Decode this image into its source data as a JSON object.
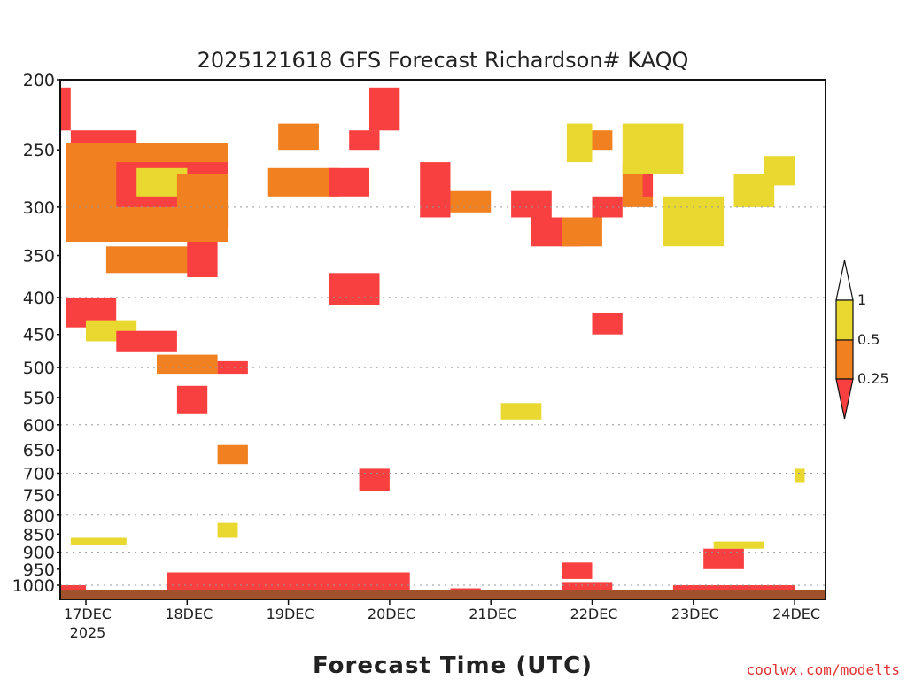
{
  "chart_data": {
    "type": "heatmap",
    "title": "2025121618 GFS Forecast Richardson# KAQQ",
    "xlabel": "Forecast Time (UTC)",
    "ylabel": "",
    "credit": "coolwx.com/modelts",
    "y_scale": "log-pressure (hPa), inverted",
    "ylim": [
      1050,
      200
    ],
    "y_ticks": [
      200,
      250,
      300,
      350,
      400,
      450,
      500,
      550,
      600,
      650,
      700,
      750,
      800,
      850,
      900,
      950,
      1000
    ],
    "y_gridlines": [
      300,
      400,
      500,
      600,
      700,
      800,
      900,
      1000
    ],
    "x_time_range_days": [
      "16DEC 18Z",
      "24DEC 06Z"
    ],
    "x_ticks": [
      {
        "label": "17DEC",
        "day": 17
      },
      {
        "label": "18DEC",
        "day": 18
      },
      {
        "label": "19DEC",
        "day": 19
      },
      {
        "label": "20DEC",
        "day": 20
      },
      {
        "label": "21DEC",
        "day": 21
      },
      {
        "label": "22DEC",
        "day": 22
      },
      {
        "label": "23DEC",
        "day": 23
      },
      {
        "label": "24DEC",
        "day": 24
      }
    ],
    "x_year_label": "2025",
    "legend": {
      "placement": "right",
      "bins": [
        {
          "range": "> 1",
          "color": "#ffffff"
        },
        {
          "range": "0.5 - 1",
          "color": "#e8d830"
        },
        {
          "range": "0.25 - 0.5",
          "color": "#f08020"
        },
        {
          "range": "< 0.25",
          "color": "#f84040"
        }
      ],
      "labels": [
        "1",
        "0.5",
        "0.25"
      ]
    },
    "ground_color": "#a0522d",
    "cells": [
      {
        "t": [
          16.75,
          16.85
        ],
        "p": [
          205,
          235
        ],
        "v": "red"
      },
      {
        "t": [
          16.85,
          17.5
        ],
        "p": [
          235,
          260
        ],
        "v": "red"
      },
      {
        "t": [
          17.0,
          17.7
        ],
        "p": [
          255,
          300
        ],
        "v": "red"
      },
      {
        "t": [
          16.8,
          18.4
        ],
        "p": [
          245,
          335
        ],
        "v": "orange"
      },
      {
        "t": [
          17.3,
          18.4
        ],
        "p": [
          260,
          300
        ],
        "v": "red"
      },
      {
        "t": [
          17.5,
          18.0
        ],
        "p": [
          265,
          290
        ],
        "v": "yellow"
      },
      {
        "t": [
          17.9,
          18.4
        ],
        "p": [
          270,
          320
        ],
        "v": "orange"
      },
      {
        "t": [
          17.2,
          18.2
        ],
        "p": [
          340,
          370
        ],
        "v": "orange"
      },
      {
        "t": [
          18.0,
          18.3
        ],
        "p": [
          335,
          375
        ],
        "v": "red"
      },
      {
        "t": [
          16.8,
          17.3
        ],
        "p": [
          400,
          440
        ],
        "v": "red"
      },
      {
        "t": [
          17.0,
          17.5
        ],
        "p": [
          430,
          460
        ],
        "v": "yellow"
      },
      {
        "t": [
          17.3,
          17.9
        ],
        "p": [
          445,
          475
        ],
        "v": "red"
      },
      {
        "t": [
          17.7,
          18.3
        ],
        "p": [
          480,
          510
        ],
        "v": "orange"
      },
      {
        "t": [
          18.3,
          18.6
        ],
        "p": [
          490,
          510
        ],
        "v": "red"
      },
      {
        "t": [
          17.9,
          18.2
        ],
        "p": [
          530,
          580
        ],
        "v": "red"
      },
      {
        "t": [
          18.3,
          18.6
        ],
        "p": [
          640,
          680
        ],
        "v": "orange"
      },
      {
        "t": [
          18.9,
          19.3
        ],
        "p": [
          230,
          250
        ],
        "v": "orange"
      },
      {
        "t": [
          18.8,
          19.5
        ],
        "p": [
          265,
          290
        ],
        "v": "orange"
      },
      {
        "t": [
          19.4,
          19.8
        ],
        "p": [
          265,
          290
        ],
        "v": "red"
      },
      {
        "t": [
          19.6,
          19.9
        ],
        "p": [
          235,
          250
        ],
        "v": "red"
      },
      {
        "t": [
          19.8,
          20.1
        ],
        "p": [
          205,
          235
        ],
        "v": "red"
      },
      {
        "t": [
          19.4,
          19.9
        ],
        "p": [
          370,
          410
        ],
        "v": "red"
      },
      {
        "t": [
          19.7,
          20.0
        ],
        "p": [
          690,
          740
        ],
        "v": "red"
      },
      {
        "t": [
          20.3,
          20.6
        ],
        "p": [
          260,
          310
        ],
        "v": "red"
      },
      {
        "t": [
          20.6,
          21.0
        ],
        "p": [
          285,
          305
        ],
        "v": "orange"
      },
      {
        "t": [
          21.2,
          21.6
        ],
        "p": [
          285,
          310
        ],
        "v": "red"
      },
      {
        "t": [
          21.4,
          21.9
        ],
        "p": [
          310,
          340
        ],
        "v": "red"
      },
      {
        "t": [
          21.7,
          22.1
        ],
        "p": [
          310,
          340
        ],
        "v": "orange"
      },
      {
        "t": [
          21.9,
          22.2
        ],
        "p": [
          235,
          250
        ],
        "v": "orange"
      },
      {
        "t": [
          22.0,
          22.3
        ],
        "p": [
          290,
          310
        ],
        "v": "red"
      },
      {
        "t": [
          22.3,
          22.6
        ],
        "p": [
          260,
          300
        ],
        "v": "orange"
      },
      {
        "t": [
          22.5,
          22.6
        ],
        "p": [
          270,
          290
        ],
        "v": "red"
      },
      {
        "t": [
          21.75,
          22.0
        ],
        "p": [
          230,
          260
        ],
        "v": "yellow"
      },
      {
        "t": [
          22.3,
          22.9
        ],
        "p": [
          230,
          270
        ],
        "v": "yellow"
      },
      {
        "t": [
          22.7,
          23.3
        ],
        "p": [
          290,
          340
        ],
        "v": "yellow"
      },
      {
        "t": [
          23.4,
          23.8
        ],
        "p": [
          270,
          300
        ],
        "v": "yellow"
      },
      {
        "t": [
          23.7,
          24.0
        ],
        "p": [
          255,
          280
        ],
        "v": "yellow"
      },
      {
        "t": [
          22.0,
          22.3
        ],
        "p": [
          420,
          450
        ],
        "v": "red"
      },
      {
        "t": [
          21.1,
          21.5
        ],
        "p": [
          560,
          590
        ],
        "v": "yellow"
      },
      {
        "t": [
          20.6,
          20.9
        ],
        "p": [
          1010,
          1050
        ],
        "v": "red"
      },
      {
        "t": [
          16.85,
          17.4
        ],
        "p": [
          860,
          880
        ],
        "v": "yellow"
      },
      {
        "t": [
          18.3,
          18.5
        ],
        "p": [
          820,
          860
        ],
        "v": "yellow"
      },
      {
        "t": [
          21.7,
          22.0
        ],
        "p": [
          930,
          980
        ],
        "v": "red"
      },
      {
        "t": [
          23.1,
          23.5
        ],
        "p": [
          890,
          950
        ],
        "v": "red"
      },
      {
        "t": [
          23.2,
          23.7
        ],
        "p": [
          870,
          890
        ],
        "v": "yellow"
      },
      {
        "t": [
          24.0,
          24.1
        ],
        "p": [
          690,
          720
        ],
        "v": "yellow"
      },
      {
        "t": [
          16.75,
          17.0
        ],
        "p": [
          1000,
          1050
        ],
        "v": "red"
      },
      {
        "t": [
          17.8,
          20.2
        ],
        "p": [
          960,
          1050
        ],
        "v": "red"
      },
      {
        "t": [
          21.7,
          22.2
        ],
        "p": [
          990,
          1050
        ],
        "v": "red"
      },
      {
        "t": [
          22.8,
          24.0
        ],
        "p": [
          1000,
          1050
        ],
        "v": "red"
      }
    ]
  }
}
